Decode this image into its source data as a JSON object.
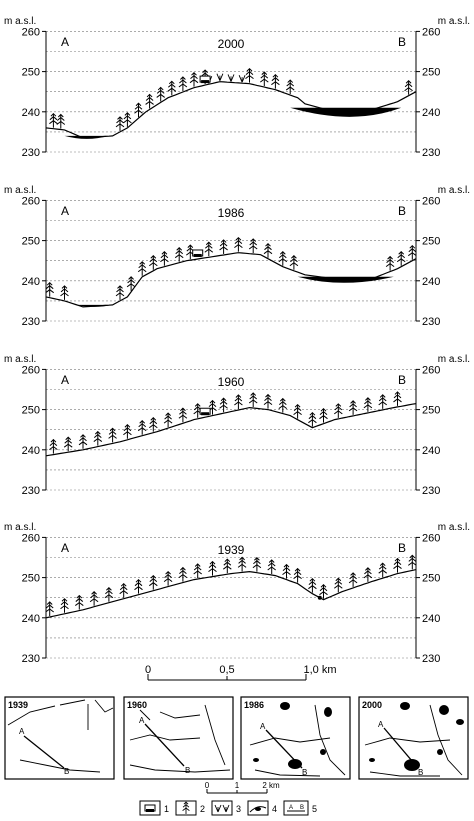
{
  "axis_unit": "m a.s.l.",
  "y_ticks": [
    "260",
    "250",
    "240",
    "230"
  ],
  "endpoint_a": "A",
  "endpoint_b": "B",
  "profiles": [
    {
      "year": "2000"
    },
    {
      "year": "1986"
    },
    {
      "year": "1960"
    },
    {
      "year": "1939"
    }
  ],
  "scale_bar": {
    "ticks": [
      "0",
      "0,5",
      "1,0 km"
    ]
  },
  "maps": [
    {
      "year": "1939"
    },
    {
      "year": "1960"
    },
    {
      "year": "1986"
    },
    {
      "year": "2000"
    }
  ],
  "map_scale": {
    "ticks": [
      "0",
      "1",
      "2 km"
    ]
  },
  "map_point_labels": {
    "a": "A",
    "b": "B"
  },
  "legend": [
    {
      "number": "1",
      "icon": "building-icon"
    },
    {
      "number": "2",
      "icon": "tree-icon"
    },
    {
      "number": "3",
      "icon": "wetland-vegetation-icon"
    },
    {
      "number": "4",
      "icon": "lake-surface-icon"
    },
    {
      "number": "5",
      "icon": "profile-line-icon"
    }
  ],
  "colors": {
    "ink": "#000000",
    "grid": "#7a7a7a",
    "water": "#000000"
  }
}
